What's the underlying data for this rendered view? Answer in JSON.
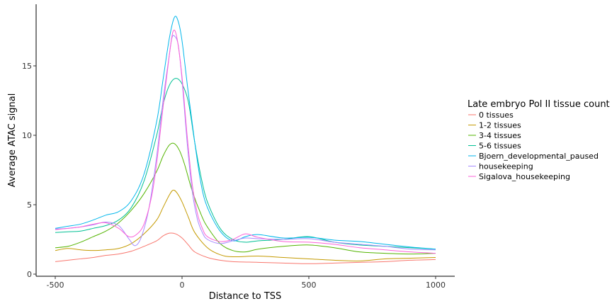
{
  "chart_data": {
    "type": "line",
    "title": "",
    "xlabel": "Distance to TSS",
    "ylabel": "Average ATAC signal",
    "xlim": [
      -500,
      1000
    ],
    "ylim": [
      0,
      19
    ],
    "xticks": [
      -500,
      0,
      500,
      1000
    ],
    "xtick_labels": [
      "-500",
      "0",
      "500",
      "1000"
    ],
    "yticks": [
      0,
      5,
      10,
      15
    ],
    "ytick_labels": [
      "0",
      "5",
      "10",
      "15"
    ],
    "grid": false,
    "legend": {
      "title": "Late embryo Pol II tissue count",
      "placement": "right"
    },
    "series": [
      {
        "name": "0 tissues",
        "color": "#F8766D",
        "points": [
          [
            -500,
            0.9
          ],
          [
            -450,
            1.0
          ],
          [
            -400,
            1.1
          ],
          [
            -350,
            1.2
          ],
          [
            -300,
            1.35
          ],
          [
            -250,
            1.45
          ],
          [
            -200,
            1.65
          ],
          [
            -150,
            2.0
          ],
          [
            -100,
            2.4
          ],
          [
            -75,
            2.75
          ],
          [
            -50,
            2.95
          ],
          [
            -25,
            2.9
          ],
          [
            0,
            2.6
          ],
          [
            25,
            2.1
          ],
          [
            50,
            1.6
          ],
          [
            100,
            1.2
          ],
          [
            150,
            1.0
          ],
          [
            200,
            0.9
          ],
          [
            300,
            0.85
          ],
          [
            400,
            0.8
          ],
          [
            500,
            0.75
          ],
          [
            600,
            0.8
          ],
          [
            700,
            0.85
          ],
          [
            800,
            0.9
          ],
          [
            900,
            1.0
          ],
          [
            1000,
            1.05
          ]
        ]
      },
      {
        "name": "1-2 tissues",
        "color": "#C49A00",
        "points": [
          [
            -500,
            1.7
          ],
          [
            -450,
            1.85
          ],
          [
            -400,
            1.75
          ],
          [
            -350,
            1.7
          ],
          [
            -300,
            1.75
          ],
          [
            -250,
            1.85
          ],
          [
            -200,
            2.2
          ],
          [
            -150,
            2.9
          ],
          [
            -100,
            3.9
          ],
          [
            -75,
            4.8
          ],
          [
            -50,
            5.7
          ],
          [
            -35,
            6.05
          ],
          [
            -20,
            5.85
          ],
          [
            0,
            5.2
          ],
          [
            25,
            4.1
          ],
          [
            50,
            3.0
          ],
          [
            100,
            1.9
          ],
          [
            150,
            1.4
          ],
          [
            200,
            1.25
          ],
          [
            300,
            1.3
          ],
          [
            400,
            1.2
          ],
          [
            500,
            1.1
          ],
          [
            600,
            1.0
          ],
          [
            700,
            0.95
          ],
          [
            800,
            1.1
          ],
          [
            900,
            1.15
          ],
          [
            1000,
            1.2
          ]
        ]
      },
      {
        "name": "3-4 tissues",
        "color": "#53B400",
        "points": [
          [
            -500,
            1.9
          ],
          [
            -450,
            2.0
          ],
          [
            -400,
            2.3
          ],
          [
            -350,
            2.7
          ],
          [
            -300,
            3.1
          ],
          [
            -250,
            3.7
          ],
          [
            -200,
            4.6
          ],
          [
            -150,
            5.8
          ],
          [
            -100,
            7.4
          ],
          [
            -75,
            8.5
          ],
          [
            -50,
            9.3
          ],
          [
            -30,
            9.4
          ],
          [
            -10,
            8.9
          ],
          [
            10,
            7.9
          ],
          [
            40,
            6.0
          ],
          [
            75,
            4.3
          ],
          [
            100,
            3.4
          ],
          [
            150,
            2.2
          ],
          [
            200,
            1.7
          ],
          [
            250,
            1.6
          ],
          [
            300,
            1.8
          ],
          [
            400,
            2.0
          ],
          [
            500,
            2.1
          ],
          [
            600,
            1.9
          ],
          [
            700,
            1.6
          ],
          [
            800,
            1.5
          ],
          [
            900,
            1.45
          ],
          [
            1000,
            1.5
          ]
        ]
      },
      {
        "name": "5-6 tissues",
        "color": "#00C094",
        "points": [
          [
            -500,
            3.0
          ],
          [
            -450,
            3.05
          ],
          [
            -400,
            3.1
          ],
          [
            -350,
            3.3
          ],
          [
            -300,
            3.5
          ],
          [
            -250,
            3.9
          ],
          [
            -200,
            4.8
          ],
          [
            -150,
            6.7
          ],
          [
            -100,
            10.0
          ],
          [
            -75,
            12.2
          ],
          [
            -50,
            13.6
          ],
          [
            -25,
            14.1
          ],
          [
            0,
            13.7
          ],
          [
            25,
            12.4
          ],
          [
            50,
            9.5
          ],
          [
            75,
            7.0
          ],
          [
            100,
            5.2
          ],
          [
            150,
            3.3
          ],
          [
            200,
            2.5
          ],
          [
            250,
            2.3
          ],
          [
            300,
            2.4
          ],
          [
            400,
            2.5
          ],
          [
            500,
            2.7
          ],
          [
            600,
            2.3
          ],
          [
            700,
            2.1
          ],
          [
            800,
            2.0
          ],
          [
            900,
            1.9
          ],
          [
            1000,
            1.8
          ]
        ]
      },
      {
        "name": "Bjoern_developmental_paused",
        "color": "#00B6EB",
        "points": [
          [
            -500,
            3.3
          ],
          [
            -450,
            3.45
          ],
          [
            -400,
            3.6
          ],
          [
            -350,
            3.9
          ],
          [
            -300,
            4.25
          ],
          [
            -250,
            4.5
          ],
          [
            -200,
            5.3
          ],
          [
            -150,
            7.2
          ],
          [
            -100,
            11.0
          ],
          [
            -75,
            14.0
          ],
          [
            -50,
            17.0
          ],
          [
            -30,
            18.5
          ],
          [
            -15,
            18.2
          ],
          [
            0,
            16.8
          ],
          [
            25,
            13.0
          ],
          [
            50,
            9.5
          ],
          [
            75,
            6.5
          ],
          [
            100,
            4.8
          ],
          [
            150,
            3.1
          ],
          [
            200,
            2.4
          ],
          [
            250,
            2.7
          ],
          [
            300,
            2.85
          ],
          [
            400,
            2.6
          ],
          [
            500,
            2.65
          ],
          [
            600,
            2.45
          ],
          [
            700,
            2.35
          ],
          [
            800,
            2.15
          ],
          [
            900,
            1.95
          ],
          [
            1000,
            1.8
          ]
        ]
      },
      {
        "name": "housekeeping",
        "color": "#A58AFF",
        "points": [
          [
            -500,
            3.25
          ],
          [
            -450,
            3.3
          ],
          [
            -400,
            3.4
          ],
          [
            -350,
            3.55
          ],
          [
            -300,
            3.75
          ],
          [
            -250,
            3.5
          ],
          [
            -210,
            2.55
          ],
          [
            -185,
            2.05
          ],
          [
            -160,
            2.7
          ],
          [
            -130,
            4.8
          ],
          [
            -100,
            8.5
          ],
          [
            -75,
            12.5
          ],
          [
            -50,
            15.8
          ],
          [
            -40,
            17.0
          ],
          [
            -30,
            17.15
          ],
          [
            -15,
            16.5
          ],
          [
            0,
            14.0
          ],
          [
            20,
            9.5
          ],
          [
            40,
            6.0
          ],
          [
            60,
            4.0
          ],
          [
            80,
            3.0
          ],
          [
            100,
            2.5
          ],
          [
            150,
            2.2
          ],
          [
            200,
            2.4
          ],
          [
            250,
            2.6
          ],
          [
            300,
            2.55
          ],
          [
            400,
            2.5
          ],
          [
            500,
            2.55
          ],
          [
            600,
            2.3
          ],
          [
            700,
            2.15
          ],
          [
            800,
            2.0
          ],
          [
            900,
            1.8
          ],
          [
            1000,
            1.75
          ]
        ]
      },
      {
        "name": "Sigalova_housekeeping",
        "color": "#FB61D7",
        "points": [
          [
            -500,
            3.2
          ],
          [
            -450,
            3.3
          ],
          [
            -400,
            3.4
          ],
          [
            -350,
            3.6
          ],
          [
            -300,
            3.7
          ],
          [
            -250,
            3.3
          ],
          [
            -210,
            2.7
          ],
          [
            -180,
            2.85
          ],
          [
            -150,
            3.6
          ],
          [
            -120,
            5.6
          ],
          [
            -100,
            8.0
          ],
          [
            -75,
            12.0
          ],
          [
            -50,
            15.8
          ],
          [
            -35,
            17.5
          ],
          [
            -20,
            17.0
          ],
          [
            0,
            14.2
          ],
          [
            20,
            10.0
          ],
          [
            40,
            6.5
          ],
          [
            60,
            4.4
          ],
          [
            80,
            3.3
          ],
          [
            100,
            2.7
          ],
          [
            150,
            2.35
          ],
          [
            200,
            2.5
          ],
          [
            250,
            2.9
          ],
          [
            300,
            2.65
          ],
          [
            400,
            2.35
          ],
          [
            500,
            2.3
          ],
          [
            600,
            2.15
          ],
          [
            700,
            1.9
          ],
          [
            800,
            1.75
          ],
          [
            900,
            1.6
          ],
          [
            1000,
            1.5
          ]
        ]
      }
    ]
  }
}
